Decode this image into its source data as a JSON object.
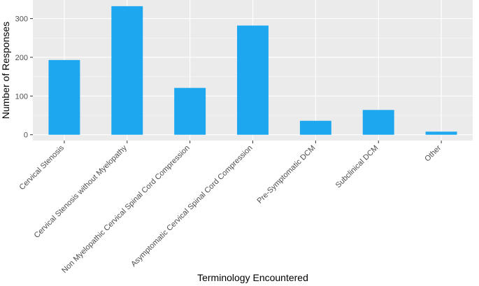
{
  "chart_data": {
    "type": "bar",
    "title": "",
    "xlabel": "Terminology Encountered",
    "ylabel": "Number of Responses",
    "categories": [
      "Cervical Stenosis",
      "Cervical Stenosis without Myelopathy",
      "Non Myelopathic Cervical Spinal Cord Compression",
      "Asymptomatic Cervical Spinal Cord Compression",
      "Pre-Symptomatic DCM",
      "Subclinical DCM",
      "Other"
    ],
    "values": [
      193,
      332,
      121,
      282,
      36,
      64,
      8
    ],
    "ylim": [
      -15,
      348
    ],
    "yticks": [
      0,
      100,
      200,
      300
    ],
    "grid": true,
    "legend": "none",
    "colors": {
      "bar": "#1DA7EE",
      "panel": "#EBEBEB",
      "grid_major": "#FFFFFF",
      "tick_text": "#4D4D4D"
    }
  }
}
